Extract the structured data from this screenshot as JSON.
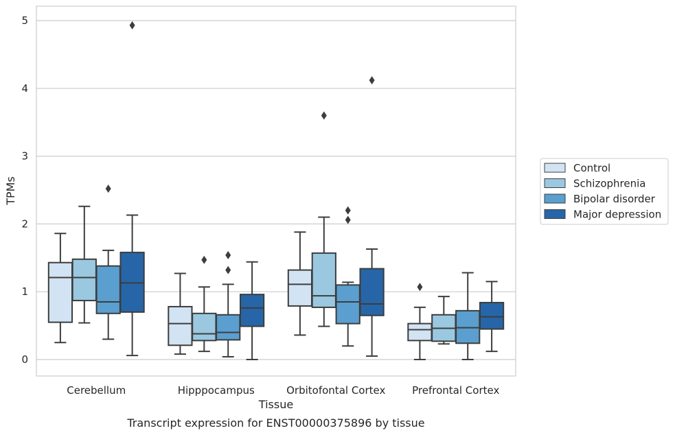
{
  "chart_data": {
    "type": "box",
    "xlabel": "Tissue",
    "ylabel": "TPMs",
    "caption": "Transcript expression for ENST00000375896 by tissue",
    "ylim": [
      -0.24,
      5.19
    ],
    "yticks": [
      0,
      1,
      2,
      3,
      4,
      5
    ],
    "grid": true,
    "legend_position": "right",
    "categories": [
      "Cerebellum",
      "Hipppocampus",
      "Orbitofontal Cortex",
      "Prefrontal Cortex"
    ],
    "series": [
      {
        "name": "Control",
        "color": "#d2e3f3",
        "boxes": [
          {
            "min": 0.25,
            "q1": 0.55,
            "median": 1.21,
            "q3": 1.43,
            "max": 1.86,
            "outliers": []
          },
          {
            "min": 0.08,
            "q1": 0.21,
            "median": 0.53,
            "q3": 0.78,
            "max": 1.27,
            "outliers": []
          },
          {
            "min": 0.36,
            "q1": 0.79,
            "median": 1.11,
            "q3": 1.32,
            "max": 1.88,
            "outliers": []
          },
          {
            "min": 0.0,
            "q1": 0.28,
            "median": 0.44,
            "q3": 0.53,
            "max": 0.77,
            "outliers": [
              1.07
            ]
          }
        ]
      },
      {
        "name": "Schizophrenia",
        "color": "#9ac8e0",
        "boxes": [
          {
            "min": 0.54,
            "q1": 0.87,
            "median": 1.21,
            "q3": 1.48,
            "max": 2.26,
            "outliers": []
          },
          {
            "min": 0.12,
            "q1": 0.28,
            "median": 0.38,
            "q3": 0.68,
            "max": 1.07,
            "outliers": [
              1.47
            ]
          },
          {
            "min": 0.49,
            "q1": 0.77,
            "median": 0.94,
            "q3": 1.57,
            "max": 2.1,
            "outliers": [
              3.6
            ]
          },
          {
            "min": 0.23,
            "q1": 0.27,
            "median": 0.46,
            "q3": 0.66,
            "max": 0.93,
            "outliers": []
          }
        ]
      },
      {
        "name": "Bipolar disorder",
        "color": "#5a9fcf",
        "boxes": [
          {
            "min": 0.3,
            "q1": 0.68,
            "median": 0.85,
            "q3": 1.38,
            "max": 1.61,
            "outliers": [
              2.52
            ]
          },
          {
            "min": 0.04,
            "q1": 0.29,
            "median": 0.4,
            "q3": 0.66,
            "max": 1.11,
            "outliers": [
              1.32,
              1.54
            ]
          },
          {
            "min": 0.2,
            "q1": 0.53,
            "median": 0.85,
            "q3": 1.1,
            "max": 1.14,
            "outliers": [
              2.06,
              2.2
            ]
          },
          {
            "min": 0.0,
            "q1": 0.24,
            "median": 0.47,
            "q3": 0.72,
            "max": 1.28,
            "outliers": []
          }
        ]
      },
      {
        "name": "Major depression",
        "color": "#2666a8",
        "boxes": [
          {
            "min": 0.06,
            "q1": 0.7,
            "median": 1.13,
            "q3": 1.58,
            "max": 2.13,
            "outliers": [
              4.93
            ]
          },
          {
            "min": 0.0,
            "q1": 0.49,
            "median": 0.76,
            "q3": 0.96,
            "max": 1.44,
            "outliers": []
          },
          {
            "min": 0.05,
            "q1": 0.65,
            "median": 0.82,
            "q3": 1.34,
            "max": 1.63,
            "outliers": [
              4.12
            ]
          },
          {
            "min": 0.12,
            "q1": 0.45,
            "median": 0.63,
            "q3": 0.84,
            "max": 1.15,
            "outliers": []
          }
        ]
      }
    ]
  }
}
